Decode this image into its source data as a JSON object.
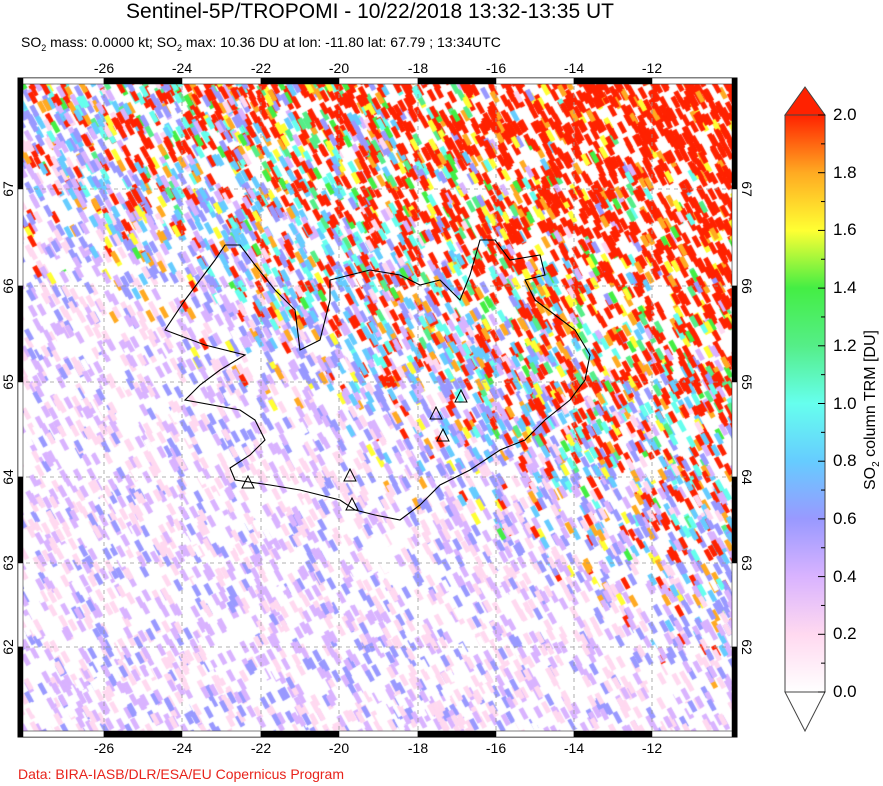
{
  "title": "Sentinel-5P/TROPOMI - 10/22/2018 13:32-13:35 UT",
  "subtitle": {
    "so2": "SO",
    "sub": "2",
    "mass": " mass: 0.0000 kt; ",
    "so2b": "SO",
    "subb": "2",
    "rest": " max: 10.36 DU at lon: -11.80 lat: 67.79 ; 13:34UTC"
  },
  "map": {
    "lon_ticks": [
      "-26",
      "-24",
      "-22",
      "-20",
      "-18",
      "-16",
      "-14",
      "-12"
    ],
    "lat_ticks": [
      "67",
      "66",
      "65",
      "64",
      "63",
      "62"
    ],
    "volcano_icon": "triangle-outline"
  },
  "colorbar": {
    "title": "SO2 column TRM [DU]",
    "title_parts": {
      "a": "SO",
      "sub": "2",
      "b": " column TRM [DU]"
    },
    "ticks": [
      "2.0",
      "1.8",
      "1.6",
      "1.4",
      "1.2",
      "1.0",
      "0.8",
      "0.6",
      "0.4",
      "0.2",
      "0.0"
    ],
    "range": [
      0,
      2
    ],
    "colors": [
      "#ffffff",
      "#ffd9f0",
      "#d9b3ff",
      "#9999ff",
      "#66ccff",
      "#66ffee",
      "#55ee88",
      "#44ee44",
      "#ffff33",
      "#ffaa22",
      "#ff2200"
    ]
  },
  "credit": "Data: BIRA-IASB/DLR/ESA/EU Copernicus Program"
}
